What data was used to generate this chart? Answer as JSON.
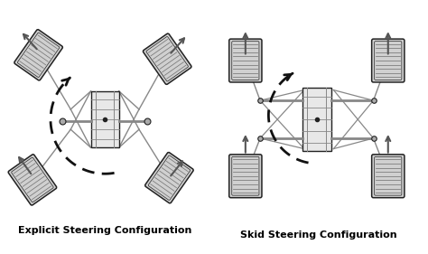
{
  "title_left": "Explicit Steering Configuration",
  "title_right": "Skid Steering Configuration",
  "bg_color": "#ffffff",
  "title_fontsize": 8,
  "fig_width": 4.74,
  "fig_height": 2.81,
  "dpi": 100,
  "line_color": "#555555",
  "dark_line": "#222222",
  "wheel_fill": "#d0d0d0",
  "chassis_fill": "#e0e0e0"
}
